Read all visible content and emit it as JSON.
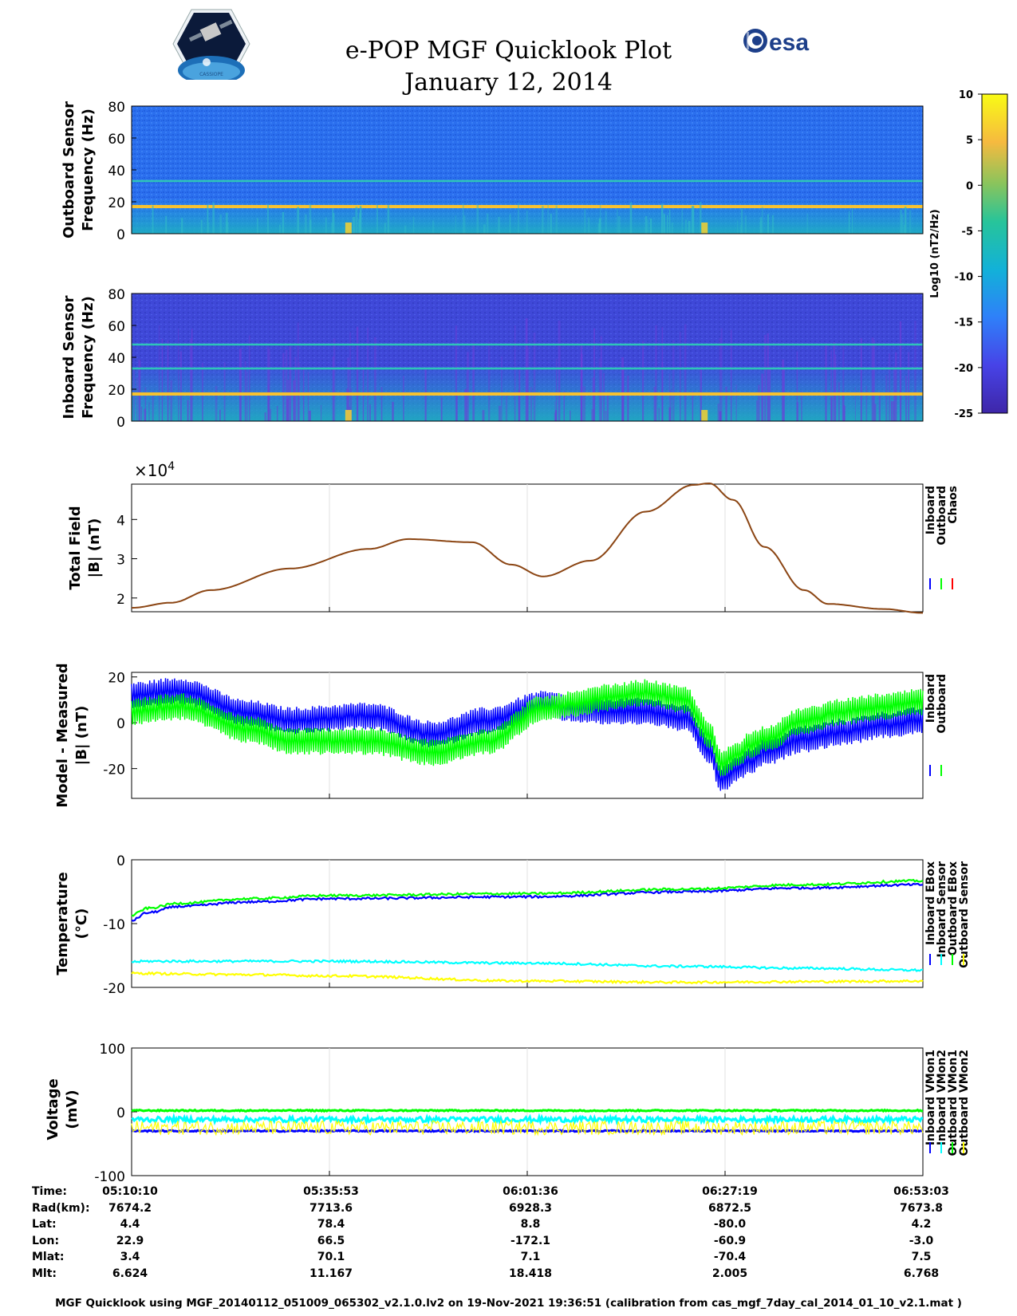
{
  "header": {
    "title": "e-POP MGF Quicklook Plot",
    "date": "January 12, 2014",
    "esa_logo_text": "esa",
    "cassiope_logo_text": "CASSIOPE"
  },
  "colorbar": {
    "label": "Log10 (nT2/Hz)",
    "ticks": [
      "10",
      "5",
      "0",
      "-5",
      "-10",
      "-15",
      "-20",
      "-25"
    ]
  },
  "colors": {
    "inboard": "#0000ff",
    "outboard": "#00ff00",
    "chaos": "#ff0000",
    "cyan": "#00ffff",
    "yellow": "#ffff00",
    "field_line": "#8b4513"
  },
  "chart_data": [
    {
      "type": "heatmap",
      "id": "outboard-spectrogram",
      "ylabel_line1": "Outboard Sensor",
      "ylabel_line2": "Frequency (Hz)",
      "yticks": [
        "80",
        "60",
        "40",
        "20",
        "0"
      ],
      "ylim": [
        0,
        80
      ],
      "spectral_lines_hz": [
        17,
        33
      ]
    },
    {
      "type": "heatmap",
      "id": "inboard-spectrogram",
      "ylabel_line1": "Inboard Sensor",
      "ylabel_line2": "Frequency (Hz)",
      "yticks": [
        "80",
        "60",
        "40",
        "20",
        "0"
      ],
      "ylim": [
        0,
        80
      ],
      "spectral_lines_hz": [
        17,
        33,
        48
      ]
    },
    {
      "type": "line",
      "id": "total-field",
      "ylabel_line1": "Total Field",
      "ylabel_line2": "|B| (nT)",
      "multiplier": "×10",
      "multiplier_exp": "4",
      "yticks": [
        "4",
        "3",
        "2"
      ],
      "ylim": [
        1.65,
        4.9
      ],
      "x_fraction": [
        0,
        0.05,
        0.1,
        0.2,
        0.3,
        0.35,
        0.43,
        0.48,
        0.52,
        0.58,
        0.65,
        0.71,
        0.73,
        0.76,
        0.8,
        0.85,
        0.88,
        0.95,
        1
      ],
      "values": [
        1.75,
        1.88,
        2.2,
        2.75,
        3.25,
        3.5,
        3.42,
        2.85,
        2.55,
        2.95,
        4.2,
        4.88,
        4.92,
        4.5,
        3.3,
        2.2,
        1.85,
        1.72,
        1.62
      ],
      "legend": [
        "Inboard",
        "Outboard",
        "Chaos"
      ]
    },
    {
      "type": "line",
      "id": "model-measured",
      "ylabel_line1": "Model - Measured",
      "ylabel_line2": "|B| (nT)",
      "yticks": [
        "20",
        "0",
        "-20"
      ],
      "ylim": [
        -33,
        22
      ],
      "x_fraction": [
        0,
        0.06,
        0.15,
        0.2,
        0.3,
        0.38,
        0.45,
        0.52,
        0.56,
        0.6,
        0.65,
        0.7,
        0.73,
        0.745,
        0.765,
        0.78,
        0.8,
        0.85,
        0.9,
        0.95,
        1
      ],
      "series": [
        {
          "name": "Inboard",
          "center": [
            12,
            14,
            4,
            1,
            3,
            -5,
            1,
            8,
            6,
            5,
            5,
            2,
            -12,
            -25,
            -20,
            -17,
            -13,
            -7,
            -4,
            -1,
            1
          ],
          "halfwidth": 6
        },
        {
          "name": "Outboard",
          "center": [
            5,
            7,
            -3,
            -8,
            -8,
            -13,
            -8,
            6,
            8,
            11,
            13,
            10,
            -5,
            -18,
            -14,
            -10,
            -7,
            1,
            5,
            7,
            9
          ],
          "halfwidth": 6
        }
      ],
      "legend": [
        "Inboard",
        "Outboard"
      ]
    },
    {
      "type": "line",
      "id": "temperature",
      "ylabel_line1": "Temperature",
      "ylabel_line2": "(°C)",
      "yticks": [
        "0",
        "-10",
        "-20"
      ],
      "ylim": [
        -20,
        0
      ],
      "x_fraction": [
        0,
        0.02,
        0.06,
        0.15,
        0.25,
        0.5,
        0.7,
        0.85,
        1
      ],
      "series": [
        {
          "name": "Inboard EBox",
          "values": [
            -9.5,
            -8.3,
            -7.3,
            -6.6,
            -6.1,
            -5.8,
            -5.0,
            -4.4,
            -3.9
          ]
        },
        {
          "name": "Inboard Sensor",
          "values": [
            -16.0,
            -15.9,
            -15.9,
            -15.9,
            -15.9,
            -16.2,
            -16.7,
            -17.0,
            -17.3
          ]
        },
        {
          "name": "Outboard EBox",
          "values": [
            -8.7,
            -7.6,
            -6.8,
            -6.1,
            -5.6,
            -5.3,
            -4.6,
            -3.9,
            -3.3
          ]
        },
        {
          "name": "Outboard Sensor",
          "values": [
            -17.8,
            -17.8,
            -17.9,
            -18.0,
            -18.2,
            -19.0,
            -19.2,
            -19.1,
            -19.0
          ]
        }
      ],
      "legend": [
        "Inboard EBox",
        "Inboard Sensor",
        "Outboard EBox",
        "Outboard Sensor"
      ]
    },
    {
      "type": "line",
      "id": "voltage",
      "ylabel_line1": "Voltage",
      "ylabel_line2": "(mV)",
      "yticks": [
        "100",
        "0",
        "-100"
      ],
      "ylim": [
        -100,
        100
      ],
      "series": [
        {
          "name": "Inboard VMon1",
          "level": -30
        },
        {
          "name": "Inboard VMon2",
          "level": -12
        },
        {
          "name": "Outboard VMon1",
          "level": 2
        },
        {
          "name": "Outboard VMon2",
          "level": -25
        }
      ],
      "legend": [
        "Inboard VMon1",
        "Inboard VMon2",
        "Outboard VMon1",
        "Outboard VMon2"
      ]
    }
  ],
  "orbit_table": {
    "labels": [
      "Time:",
      "Rad(km):",
      "Lat:",
      "Lon:",
      "Mlat:",
      "Mlt:"
    ],
    "columns": [
      [
        "05:10:10",
        "7674.2",
        "4.4",
        "22.9",
        "3.4",
        "6.624"
      ],
      [
        "05:35:53",
        "7713.6",
        "78.4",
        "66.5",
        "70.1",
        "11.167"
      ],
      [
        "06:01:36",
        "6928.3",
        "8.8",
        "-172.1",
        "7.1",
        "18.418"
      ],
      [
        "06:27:19",
        "6872.5",
        "-80.0",
        "-60.9",
        "-70.4",
        "2.005"
      ],
      [
        "06:53:03",
        "7673.8",
        "4.2",
        "-3.0",
        "7.5",
        "6.768"
      ]
    ]
  },
  "footer": "MGF Quicklook using MGF_20140112_051009_065302_v2.1.0.lv2 on 19-Nov-2021 19:36:51 (calibration from cas_mgf_7day_cal_2014_01_10_v2.1.mat )"
}
